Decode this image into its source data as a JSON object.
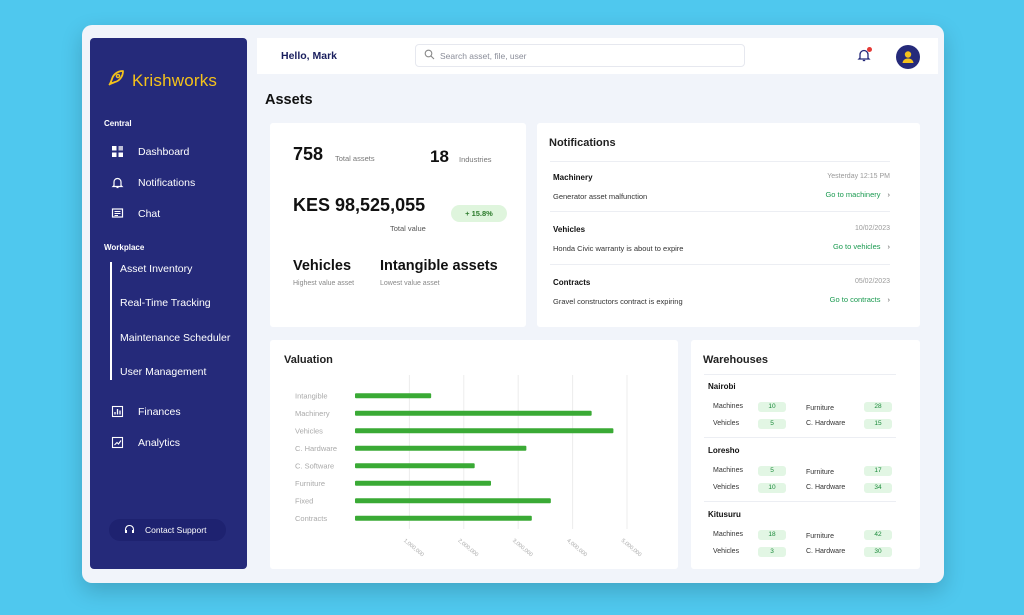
{
  "brand": {
    "name": "Krishworks"
  },
  "sidebar": {
    "central_label": "Central",
    "central_items": [
      {
        "label": "Dashboard",
        "icon": "grid-icon"
      },
      {
        "label": "Notifications",
        "icon": "bell-icon"
      },
      {
        "label": "Chat",
        "icon": "chat-icon"
      }
    ],
    "workplace_label": "Workplace",
    "workplace_items": [
      "Asset Inventory",
      "Real-Time Tracking",
      "Maintenance Scheduler",
      "User Management"
    ],
    "bottom_items": [
      {
        "label": "Finances",
        "icon": "finances-icon"
      },
      {
        "label": "Analytics",
        "icon": "analytics-icon"
      }
    ],
    "support_label": "Contact Support"
  },
  "topbar": {
    "greeting": "Hello, Mark",
    "search_placeholder": "Search asset, file, user",
    "accent": "#252a7a"
  },
  "page": {
    "title": "Assets"
  },
  "assets": {
    "total_assets": "758",
    "total_assets_label": "Total assets",
    "industries": "18",
    "industries_label": "Industries",
    "total_value": "KES 98,525,055",
    "total_value_label": "Total value",
    "change": "+ 15.8%",
    "highest": "Vehicles",
    "highest_label": "Highest value asset",
    "lowest": "Intangible assets",
    "lowest_label": "Lowest value asset"
  },
  "notifications": {
    "title": "Notifications",
    "items": [
      {
        "category": "Machinery",
        "message": "Generator asset malfunction",
        "date": "Yesterday 12:15 PM",
        "link": "Go to machinery"
      },
      {
        "category": "Vehicles",
        "message": "Honda Civic warranty is about to expire",
        "date": "10/02/2023",
        "link": "Go to vehicles"
      },
      {
        "category": "Contracts",
        "message": "Gravel constructors contract is expiring",
        "date": "05/02/2023",
        "link": "Go to contracts"
      }
    ]
  },
  "chart_data": {
    "type": "bar",
    "orientation": "horizontal",
    "title": "Valuation",
    "categories": [
      "Intangible",
      "Machinery",
      "Vehicles",
      "C. Hardware",
      "C. Software",
      "Furniture",
      "Fixed",
      "Contracts"
    ],
    "values": [
      1400000,
      4350000,
      4750000,
      3150000,
      2200000,
      2500000,
      3600000,
      3250000
    ],
    "xlim": [
      0,
      5000000
    ],
    "xticks": [
      "1,000,000",
      "2,000,000",
      "3,000,000",
      "4,000,000",
      "5,000,000"
    ],
    "bar_color": "#3aaa35",
    "grid": true
  },
  "warehouses": {
    "title": "Warehouses",
    "items": [
      {
        "name": "Nairobi",
        "machines": "10",
        "vehicles": "5",
        "furniture": "28",
        "hardware": "15"
      },
      {
        "name": "Loresho",
        "machines": "5",
        "vehicles": "10",
        "furniture": "17",
        "hardware": "34"
      },
      {
        "name": "Kitusuru",
        "machines": "18",
        "vehicles": "3",
        "furniture": "42",
        "hardware": "30"
      }
    ],
    "labels": {
      "machines": "Machines",
      "vehicles": "Vehicles",
      "furniture": "Furniture",
      "hardware": "C. Hardware"
    }
  }
}
